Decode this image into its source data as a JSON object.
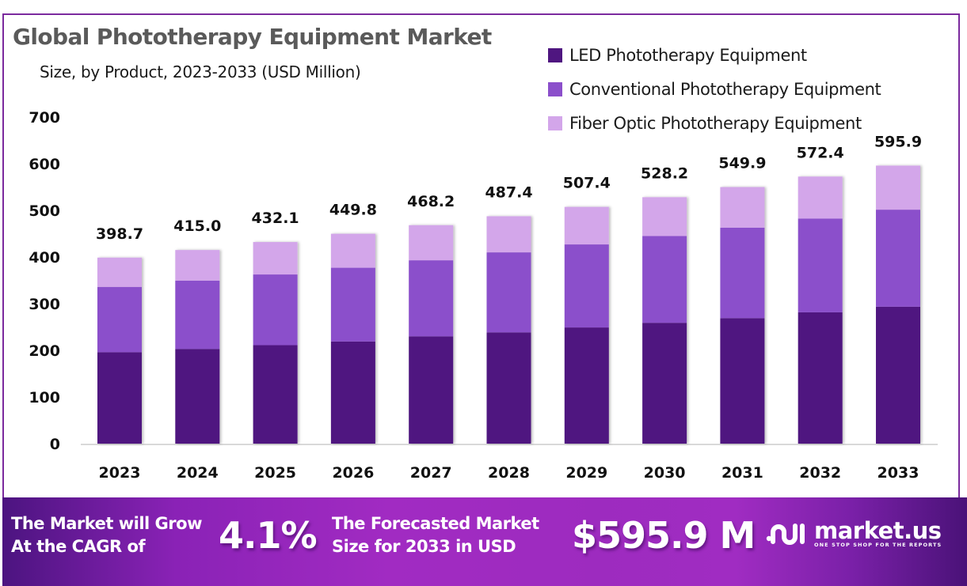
{
  "header": {
    "title": "Global Phototherapy Equipment Market",
    "subtitle": "Size, by Product, 2023-2033 (USD Million)"
  },
  "colors": {
    "led": "#4f1680",
    "conventional": "#8b4fcb",
    "fiber_optic": "#d3a6ea",
    "frame": "#7b2a9e"
  },
  "chart_data": {
    "type": "bar",
    "stacked": true,
    "title": "Global Phototherapy Equipment Market",
    "subtitle": "Size, by Product, 2023-2033 (USD Million)",
    "xlabel": "",
    "ylabel": "",
    "categories": [
      "2023",
      "2024",
      "2025",
      "2026",
      "2027",
      "2028",
      "2029",
      "2030",
      "2031",
      "2032",
      "2033"
    ],
    "series": [
      {
        "name": "LED Phototherapy Equipment",
        "color": "#4f1680",
        "values": [
          196.0,
          203.0,
          211.0,
          219.0,
          230.0,
          238.5,
          249.0,
          259.0,
          269.0,
          281.5,
          293.5
        ]
      },
      {
        "name": "Conventional Phototherapy Equipment",
        "color": "#8b4fcb",
        "values": [
          140.0,
          146.5,
          151.6,
          158.0,
          163.0,
          171.5,
          178.0,
          186.0,
          194.0,
          201.0,
          208.0
        ]
      },
      {
        "name": "Fiber Optic Phototherapy Equipment",
        "color": "#d3a6ea",
        "values": [
          62.7,
          65.5,
          69.5,
          72.8,
          75.2,
          77.4,
          80.4,
          83.2,
          86.9,
          89.9,
          94.4
        ]
      }
    ],
    "totals": [
      398.7,
      415.0,
      432.1,
      449.8,
      468.2,
      487.4,
      507.4,
      528.2,
      549.9,
      572.4,
      595.9
    ],
    "total_labels": [
      "398.7",
      "415.0",
      "432.1",
      "449.8",
      "468.2",
      "487.4",
      "507.4",
      "528.2",
      "549.9",
      "572.4",
      "595.9"
    ],
    "yticks": [
      0,
      100,
      200,
      300,
      400,
      500,
      600,
      700
    ],
    "ylim": [
      0,
      700
    ],
    "grid": false,
    "legend": "top-right"
  },
  "banner": {
    "cagr_text_line1": "The Market will Grow",
    "cagr_text_line2": "At the CAGR of",
    "cagr_value": "4.1%",
    "forecast_text_line1": "The Forecasted Market",
    "forecast_text_line2": "Size for 2033 in USD",
    "forecast_value": "$595.9 M",
    "brand_name": "market.us",
    "brand_tagline": "ONE STOP SHOP FOR THE REPORTS"
  }
}
